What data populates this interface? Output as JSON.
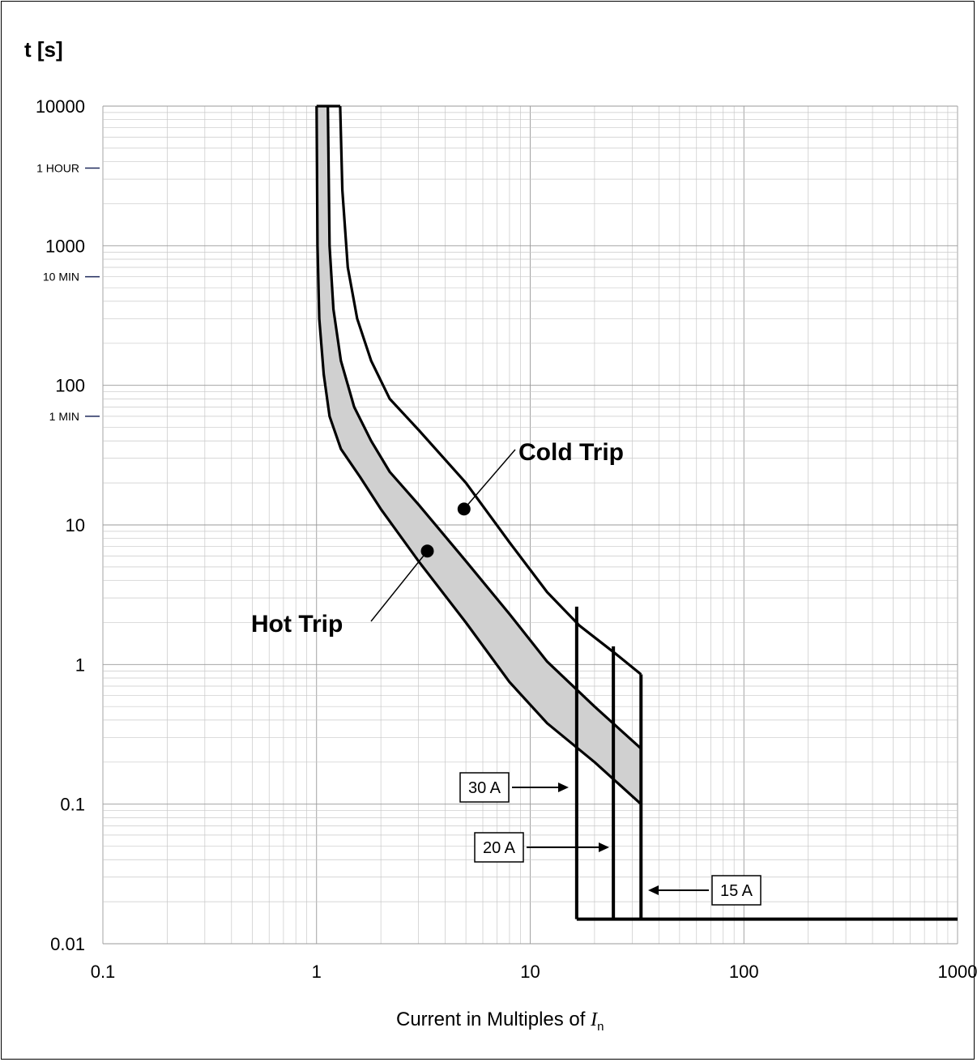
{
  "chart_data": {
    "type": "line",
    "title": "",
    "ylabel": "t [s]",
    "xlabel_prefix": "Current in Multiples of ",
    "xlabel_symbol": "I",
    "xlabel_subscript": "n",
    "x_scale": "log",
    "y_scale": "log",
    "xlim": [
      0.1,
      1000
    ],
    "ylim": [
      0.01,
      10000
    ],
    "x_ticks": [
      "0.1",
      "1",
      "10",
      "100",
      "1000"
    ],
    "x_tick_values": [
      0.1,
      1,
      10,
      100,
      1000
    ],
    "y_ticks": [
      "0.01",
      "0.1",
      "1",
      "10",
      "100",
      "1000",
      "10000"
    ],
    "y_tick_values": [
      0.01,
      0.1,
      1,
      10,
      100,
      1000,
      10000
    ],
    "grid": true,
    "time_markers": [
      {
        "label": "1 HOUR",
        "value": 3600
      },
      {
        "label": "10 MIN",
        "value": 600
      },
      {
        "label": "1 MIN",
        "value": 60
      }
    ],
    "series": [
      {
        "name": "Hot Trip",
        "role": "hot-lower",
        "x": [
          1.0,
          1.01,
          1.03,
          1.08,
          1.15,
          1.3,
          1.6,
          2.0,
          3.0,
          5.0,
          8.0,
          12.0,
          20.0,
          33.0
        ],
        "y": [
          10000,
          1000,
          300,
          120,
          60,
          35,
          22,
          13,
          5.5,
          2.0,
          0.75,
          0.38,
          0.2,
          0.1
        ]
      },
      {
        "name": "",
        "role": "hot-upper",
        "x": [
          1.13,
          1.15,
          1.2,
          1.3,
          1.5,
          1.8,
          2.2,
          3.0,
          5.0,
          8.0,
          12.0,
          20.0,
          33.0
        ],
        "y": [
          10000,
          1000,
          350,
          150,
          70,
          40,
          24,
          14,
          5.5,
          2.3,
          1.05,
          0.5,
          0.25
        ]
      },
      {
        "name": "Cold Trip",
        "role": "cold",
        "x": [
          1.29,
          1.32,
          1.4,
          1.55,
          1.8,
          2.2,
          3.0,
          5.0,
          8.0,
          12.0,
          17.0,
          25.0,
          33.0
        ],
        "y": [
          10000,
          2500,
          700,
          300,
          150,
          80,
          48,
          20,
          7.5,
          3.3,
          1.9,
          1.2,
          0.85
        ]
      }
    ],
    "instantaneous": [
      {
        "label": "30 A",
        "x": 16.5,
        "y_top": 2.6
      },
      {
        "label": "20 A",
        "x": 24.5,
        "y_top": 1.35
      },
      {
        "label": "15 A",
        "x": 33.0,
        "y_top": 0.85
      }
    ],
    "floor": {
      "y": 0.015,
      "x_from": 16.5,
      "x_to": 1000
    },
    "annotations": {
      "cold_label": "Cold Trip",
      "hot_label": "Hot Trip",
      "cold_point": {
        "x": 4.9,
        "y": 13
      },
      "hot_point": {
        "x": 3.3,
        "y": 6.5
      }
    },
    "colors": {
      "band": "#d0d0d0",
      "curve": "#000000",
      "marker": "#1f2a5c"
    }
  }
}
